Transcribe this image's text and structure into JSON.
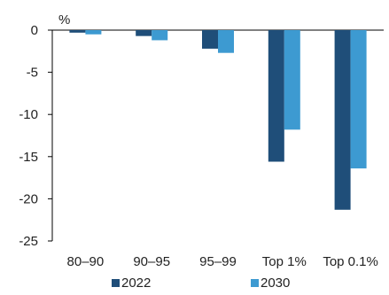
{
  "chart_data": {
    "type": "bar",
    "unit_label": "%",
    "categories": [
      "80–90",
      "90–95",
      "95–99",
      "Top 1%",
      "Top 0.1%"
    ],
    "series": [
      {
        "name": "2022",
        "color": "#1f4e79",
        "values": [
          -0.3,
          -0.7,
          -2.2,
          -15.6,
          -21.3
        ]
      },
      {
        "name": "2030",
        "color": "#3d9ad1",
        "values": [
          -0.5,
          -1.2,
          -2.7,
          -11.8,
          -16.4
        ]
      }
    ],
    "y_ticks": [
      0,
      -5,
      -10,
      -15,
      -20,
      -25
    ],
    "ylim": [
      -25,
      0
    ],
    "grid": false,
    "legend_position": "bottom"
  }
}
